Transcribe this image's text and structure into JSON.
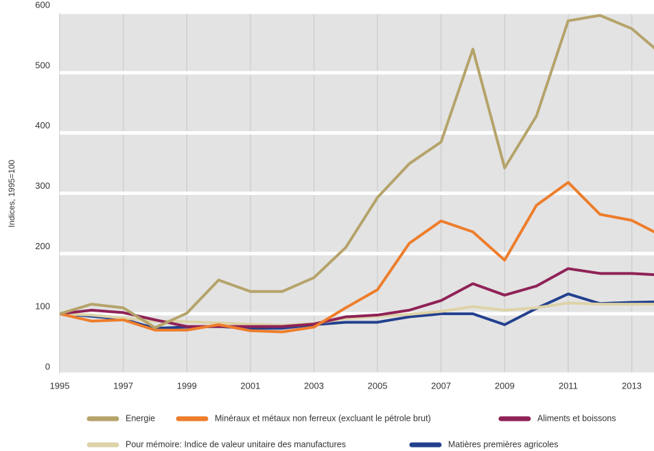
{
  "chart_data": {
    "type": "line",
    "y_label": "Indices, 1995=100",
    "x": [
      1995,
      1996,
      1997,
      1998,
      1999,
      2000,
      2001,
      2002,
      2003,
      2004,
      2005,
      2006,
      2007,
      2008,
      2009,
      2010,
      2011,
      2012,
      2013,
      2014
    ],
    "series": [
      {
        "name": "Energie",
        "color": "#b5a36a",
        "values": [
          100,
          116,
          110,
          77,
          101,
          156,
          137,
          137,
          160,
          210,
          293,
          349,
          385,
          539,
          342,
          428,
          586,
          595,
          573,
          528
        ]
      },
      {
        "name": "Minéraux et métaux non ferreux (excluant le pétrole brut)",
        "color": "#ee7d2b",
        "values": [
          100,
          88,
          90,
          73,
          73,
          82,
          72,
          70,
          78,
          110,
          140,
          217,
          254,
          236,
          189,
          280,
          318,
          265,
          255,
          228
        ]
      },
      {
        "name": "Aliments et boissons",
        "color": "#8f2257",
        "values": [
          100,
          106,
          102,
          90,
          79,
          79,
          79,
          79,
          83,
          95,
          98,
          106,
          122,
          150,
          131,
          146,
          175,
          167,
          167,
          164
        ]
      },
      {
        "name": "Pour mémoire: Indice de valeur unitaire des manufactures",
        "color": "#ddd3a8",
        "values": [
          100,
          98,
          93,
          88,
          87,
          85,
          83,
          81,
          84,
          92,
          96,
          99,
          104,
          112,
          106,
          110,
          118,
          116,
          116,
          116
        ]
      },
      {
        "name": "Matières premières agricoles",
        "color": "#23408e",
        "values": [
          100,
          96,
          91,
          76,
          78,
          79,
          76,
          76,
          82,
          86,
          86,
          95,
          100,
          100,
          82,
          109,
          133,
          117,
          119,
          120
        ]
      }
    ],
    "xlim": [
      1995,
      2013.7
    ],
    "xticks": [
      1995,
      1997,
      1999,
      2001,
      2003,
      2005,
      2007,
      2009,
      2011,
      2013
    ],
    "ylim": [
      0,
      600
    ],
    "yticks": [
      0,
      100,
      200,
      300,
      400,
      500,
      600
    ],
    "grid": true
  }
}
